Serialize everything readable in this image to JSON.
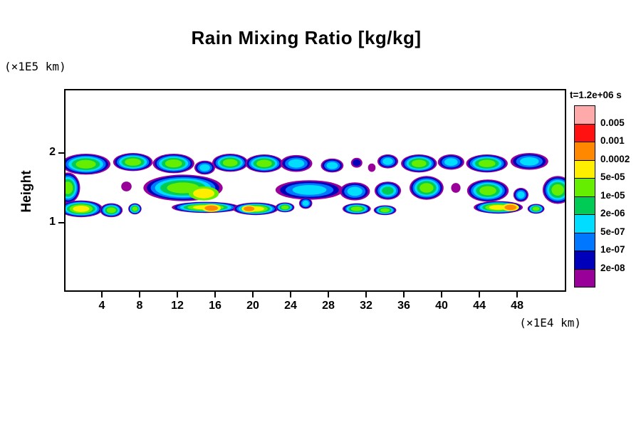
{
  "chart_data": {
    "type": "filled_contour",
    "title": "Rain Mixing Ratio [kg/kg]",
    "time_label": "t=1.2e+06 s",
    "ylabel": "Height",
    "y_unit_label": "(×1E5 km)",
    "x_unit_label": "(×1E4 km)",
    "x_ticks": [
      4,
      8,
      12,
      16,
      20,
      24,
      28,
      32,
      36,
      40,
      44,
      48
    ],
    "y_ticks": [
      1,
      2
    ],
    "xlim": [
      0,
      53.2
    ],
    "ylim": [
      0,
      2.92
    ],
    "grid": false,
    "legend_position": "right",
    "legend": {
      "levels_top_to_bottom": [
        "0.005",
        "0.001",
        "0.0002",
        "5e-05",
        "1e-05",
        "2e-06",
        "5e-07",
        "1e-07",
        "2e-08"
      ],
      "colors_top_to_bottom": [
        "#ffaaaa",
        "#ff1111",
        "#ff8800",
        "#ffee00",
        "#66ee00",
        "#00cc55",
        "#00ddff",
        "#0077ff",
        "#0000bb",
        "#990099"
      ]
    },
    "blob_format": [
      "x_center",
      "height_center",
      "x_halfwidth",
      "height_halfwidth",
      "max_level_index_low_to_high",
      "min_level_index_optional"
    ],
    "blobs": [
      [
        2.3,
        1.84,
        2.6,
        0.15,
        5
      ],
      [
        7.3,
        1.87,
        2.1,
        0.13,
        5
      ],
      [
        11.6,
        1.85,
        2.2,
        0.14,
        5
      ],
      [
        14.9,
        1.79,
        1.1,
        0.1,
        3
      ],
      [
        17.6,
        1.86,
        1.9,
        0.13,
        5
      ],
      [
        21.2,
        1.85,
        2.0,
        0.13,
        5
      ],
      [
        24.6,
        1.85,
        1.7,
        0.12,
        3
      ],
      [
        28.4,
        1.82,
        1.2,
        0.1,
        3
      ],
      [
        31.0,
        1.86,
        0.6,
        0.07,
        1
      ],
      [
        32.6,
        1.79,
        0.4,
        0.06,
        0
      ],
      [
        34.3,
        1.88,
        1.1,
        0.1,
        3
      ],
      [
        37.6,
        1.85,
        1.9,
        0.13,
        5
      ],
      [
        41.0,
        1.87,
        1.4,
        0.11,
        3
      ],
      [
        44.8,
        1.85,
        2.2,
        0.13,
        5
      ],
      [
        49.3,
        1.88,
        2.0,
        0.12,
        3
      ],
      [
        0.4,
        1.5,
        1.3,
        0.22,
        5
      ],
      [
        6.6,
        1.52,
        0.55,
        0.07,
        0
      ],
      [
        12.6,
        1.5,
        4.2,
        0.19,
        5
      ],
      [
        14.8,
        1.42,
        1.6,
        0.1,
        6,
        5
      ],
      [
        26.0,
        1.47,
        3.6,
        0.14,
        3
      ],
      [
        30.8,
        1.45,
        1.6,
        0.13,
        3
      ],
      [
        34.3,
        1.46,
        1.4,
        0.13,
        4
      ],
      [
        38.4,
        1.5,
        1.8,
        0.17,
        5
      ],
      [
        41.5,
        1.5,
        0.5,
        0.07,
        0
      ],
      [
        44.9,
        1.46,
        2.2,
        0.16,
        5
      ],
      [
        48.4,
        1.4,
        0.8,
        0.1,
        3
      ],
      [
        52.3,
        1.47,
        1.6,
        0.2,
        5
      ],
      [
        1.8,
        1.2,
        2.3,
        0.12,
        6
      ],
      [
        5.0,
        1.18,
        1.2,
        0.1,
        5
      ],
      [
        7.5,
        1.2,
        0.7,
        0.08,
        5
      ],
      [
        15.0,
        1.22,
        3.6,
        0.08,
        6
      ],
      [
        15.6,
        1.21,
        1.0,
        0.055,
        7,
        6
      ],
      [
        20.3,
        1.2,
        2.4,
        0.09,
        6
      ],
      [
        19.6,
        1.2,
        0.8,
        0.05,
        7,
        6
      ],
      [
        23.4,
        1.22,
        1.0,
        0.07,
        5
      ],
      [
        25.6,
        1.28,
        0.7,
        0.08,
        3
      ],
      [
        31.0,
        1.2,
        1.5,
        0.08,
        5
      ],
      [
        34.0,
        1.18,
        1.2,
        0.07,
        5
      ],
      [
        46.0,
        1.22,
        2.6,
        0.09,
        6
      ],
      [
        47.3,
        1.22,
        0.9,
        0.055,
        7,
        6
      ],
      [
        50.0,
        1.2,
        0.9,
        0.07,
        5
      ]
    ]
  }
}
